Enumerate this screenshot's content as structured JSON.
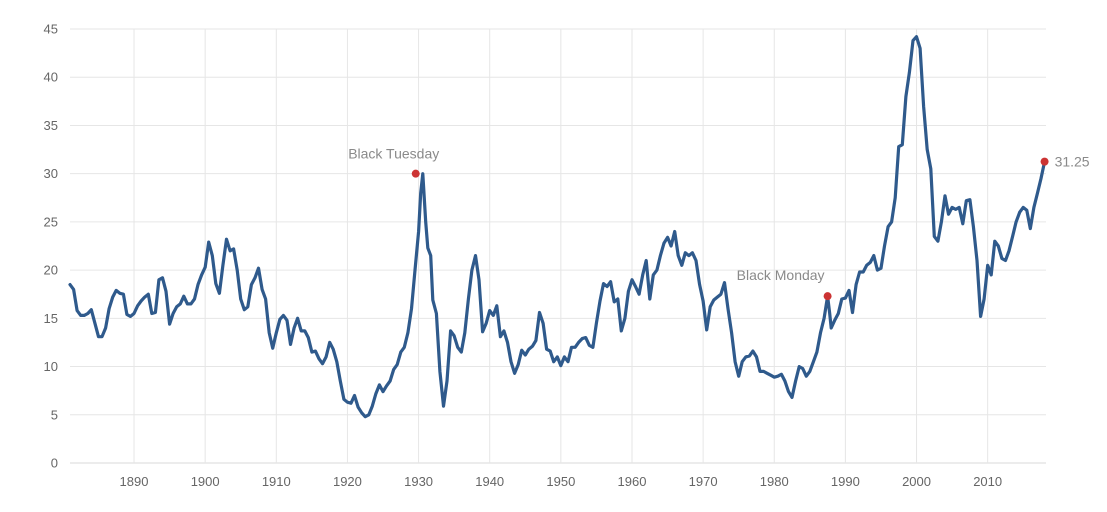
{
  "chart_data": {
    "type": "line",
    "title": "",
    "xlabel": "",
    "ylabel": "",
    "xlim": [
      1881,
      2018.2
    ],
    "ylim": [
      0,
      45
    ],
    "grid": true,
    "x_ticks": [
      1890,
      1900,
      1910,
      1920,
      1930,
      1940,
      1950,
      1960,
      1970,
      1980,
      1990,
      2000,
      2010
    ],
    "y_ticks": [
      0,
      5,
      10,
      15,
      20,
      25,
      30,
      35,
      40,
      45
    ],
    "colors": {
      "line": "#2f5a8c",
      "marker": "#cc3333",
      "grid": "#e6e6e6",
      "tick_text": "#666666",
      "annotation_text": "#8a8a8a"
    },
    "series": [
      {
        "points": [
          [
            1881.0,
            18.5
          ],
          [
            1881.5,
            18.0
          ],
          [
            1882.0,
            15.8
          ],
          [
            1882.5,
            15.3
          ],
          [
            1883.0,
            15.3
          ],
          [
            1883.5,
            15.5
          ],
          [
            1884.0,
            15.9
          ],
          [
            1884.5,
            14.5
          ],
          [
            1885.0,
            13.1
          ],
          [
            1885.5,
            13.1
          ],
          [
            1886.0,
            14.0
          ],
          [
            1886.5,
            16.0
          ],
          [
            1887.0,
            17.2
          ],
          [
            1887.5,
            17.9
          ],
          [
            1888.0,
            17.6
          ],
          [
            1888.5,
            17.5
          ],
          [
            1889.0,
            15.4
          ],
          [
            1889.5,
            15.2
          ],
          [
            1890.0,
            15.5
          ],
          [
            1890.5,
            16.3
          ],
          [
            1891.0,
            16.8
          ],
          [
            1891.5,
            17.2
          ],
          [
            1892.0,
            17.5
          ],
          [
            1892.5,
            15.5
          ],
          [
            1893.0,
            15.6
          ],
          [
            1893.5,
            19.0
          ],
          [
            1894.0,
            19.2
          ],
          [
            1894.5,
            17.8
          ],
          [
            1895.0,
            14.4
          ],
          [
            1895.5,
            15.5
          ],
          [
            1896.0,
            16.2
          ],
          [
            1896.5,
            16.5
          ],
          [
            1897.0,
            17.3
          ],
          [
            1897.5,
            16.5
          ],
          [
            1898.0,
            16.5
          ],
          [
            1898.5,
            17.0
          ],
          [
            1899.0,
            18.5
          ],
          [
            1899.5,
            19.5
          ],
          [
            1900.0,
            20.3
          ],
          [
            1900.5,
            22.9
          ],
          [
            1901.0,
            21.5
          ],
          [
            1901.5,
            18.6
          ],
          [
            1902.0,
            17.6
          ],
          [
            1902.5,
            20.5
          ],
          [
            1903.0,
            23.2
          ],
          [
            1903.5,
            22.0
          ],
          [
            1904.0,
            22.2
          ],
          [
            1904.5,
            20.0
          ],
          [
            1905.0,
            17.0
          ],
          [
            1905.5,
            15.9
          ],
          [
            1906.0,
            16.2
          ],
          [
            1906.5,
            18.5
          ],
          [
            1907.0,
            19.2
          ],
          [
            1907.5,
            20.2
          ],
          [
            1908.0,
            18.0
          ],
          [
            1908.5,
            17.0
          ],
          [
            1909.0,
            13.5
          ],
          [
            1909.5,
            11.9
          ],
          [
            1910.0,
            13.5
          ],
          [
            1910.5,
            14.9
          ],
          [
            1911.0,
            15.3
          ],
          [
            1911.5,
            14.8
          ],
          [
            1912.0,
            12.3
          ],
          [
            1912.5,
            14.0
          ],
          [
            1913.0,
            15.0
          ],
          [
            1913.5,
            13.7
          ],
          [
            1914.0,
            13.7
          ],
          [
            1914.5,
            13.0
          ],
          [
            1915.0,
            11.5
          ],
          [
            1915.5,
            11.6
          ],
          [
            1916.0,
            10.8
          ],
          [
            1916.5,
            10.3
          ],
          [
            1917.0,
            11.0
          ],
          [
            1917.5,
            12.5
          ],
          [
            1918.0,
            11.8
          ],
          [
            1918.5,
            10.5
          ],
          [
            1919.0,
            8.5
          ],
          [
            1919.5,
            6.6
          ],
          [
            1920.0,
            6.3
          ],
          [
            1920.5,
            6.2
          ],
          [
            1921.0,
            7.0
          ],
          [
            1921.5,
            5.8
          ],
          [
            1922.0,
            5.2
          ],
          [
            1922.5,
            4.8
          ],
          [
            1923.0,
            5.0
          ],
          [
            1923.5,
            5.9
          ],
          [
            1924.0,
            7.2
          ],
          [
            1924.5,
            8.1
          ],
          [
            1925.0,
            7.4
          ],
          [
            1925.5,
            8.0
          ],
          [
            1926.0,
            8.5
          ],
          [
            1926.5,
            9.7
          ],
          [
            1927.0,
            10.2
          ],
          [
            1927.5,
            11.5
          ],
          [
            1928.0,
            12.0
          ],
          [
            1928.5,
            13.5
          ],
          [
            1929.0,
            16.0
          ],
          [
            1929.5,
            20.0
          ],
          [
            1930.0,
            24.0
          ],
          [
            1930.3,
            28.0
          ],
          [
            1930.6,
            30.0
          ],
          [
            1931.0,
            25.0
          ],
          [
            1931.3,
            22.3
          ],
          [
            1931.7,
            21.5
          ],
          [
            1932.0,
            16.9
          ],
          [
            1932.5,
            15.5
          ],
          [
            1933.0,
            9.5
          ],
          [
            1933.5,
            5.9
          ],
          [
            1934.0,
            8.5
          ],
          [
            1934.5,
            13.7
          ],
          [
            1935.0,
            13.2
          ],
          [
            1935.5,
            12.0
          ],
          [
            1936.0,
            11.5
          ],
          [
            1936.5,
            13.5
          ],
          [
            1937.0,
            17.0
          ],
          [
            1937.5,
            20.0
          ],
          [
            1938.0,
            21.5
          ],
          [
            1938.5,
            19.0
          ],
          [
            1939.0,
            13.6
          ],
          [
            1939.5,
            14.5
          ],
          [
            1940.0,
            15.8
          ],
          [
            1940.5,
            15.3
          ],
          [
            1941.0,
            16.3
          ],
          [
            1941.5,
            13.1
          ],
          [
            1942.0,
            13.7
          ],
          [
            1942.5,
            12.5
          ],
          [
            1943.0,
            10.5
          ],
          [
            1943.5,
            9.3
          ],
          [
            1944.0,
            10.2
          ],
          [
            1944.5,
            11.7
          ],
          [
            1945.0,
            11.2
          ],
          [
            1945.5,
            11.8
          ],
          [
            1946.0,
            12.1
          ],
          [
            1946.5,
            12.7
          ],
          [
            1947.0,
            15.6
          ],
          [
            1947.5,
            14.5
          ],
          [
            1948.0,
            11.8
          ],
          [
            1948.5,
            11.6
          ],
          [
            1949.0,
            10.5
          ],
          [
            1949.5,
            11.0
          ],
          [
            1950.0,
            10.1
          ],
          [
            1950.5,
            11.0
          ],
          [
            1951.0,
            10.5
          ],
          [
            1951.5,
            12.0
          ],
          [
            1952.0,
            12.0
          ],
          [
            1952.5,
            12.5
          ],
          [
            1953.0,
            12.9
          ],
          [
            1953.5,
            13.0
          ],
          [
            1954.0,
            12.2
          ],
          [
            1954.5,
            12.0
          ],
          [
            1955.0,
            14.5
          ],
          [
            1955.5,
            16.8
          ],
          [
            1956.0,
            18.6
          ],
          [
            1956.5,
            18.3
          ],
          [
            1957.0,
            18.8
          ],
          [
            1957.5,
            16.7
          ],
          [
            1958.0,
            17.0
          ],
          [
            1958.5,
            13.7
          ],
          [
            1959.0,
            15.0
          ],
          [
            1959.5,
            17.8
          ],
          [
            1960.0,
            19.0
          ],
          [
            1960.5,
            18.3
          ],
          [
            1961.0,
            17.5
          ],
          [
            1961.5,
            19.5
          ],
          [
            1962.0,
            21.0
          ],
          [
            1962.5,
            17.0
          ],
          [
            1963.0,
            19.5
          ],
          [
            1963.5,
            20.0
          ],
          [
            1964.0,
            21.5
          ],
          [
            1964.5,
            22.8
          ],
          [
            1965.0,
            23.4
          ],
          [
            1965.5,
            22.5
          ],
          [
            1966.0,
            24.0
          ],
          [
            1966.5,
            21.5
          ],
          [
            1967.0,
            20.5
          ],
          [
            1967.5,
            21.8
          ],
          [
            1968.0,
            21.5
          ],
          [
            1968.5,
            21.8
          ],
          [
            1969.0,
            21.0
          ],
          [
            1969.5,
            18.5
          ],
          [
            1970.0,
            16.8
          ],
          [
            1970.5,
            13.8
          ],
          [
            1971.0,
            16.2
          ],
          [
            1971.5,
            16.9
          ],
          [
            1972.0,
            17.2
          ],
          [
            1972.5,
            17.5
          ],
          [
            1973.0,
            18.7
          ],
          [
            1973.5,
            16.0
          ],
          [
            1974.0,
            13.5
          ],
          [
            1974.5,
            10.5
          ],
          [
            1975.0,
            9.0
          ],
          [
            1975.5,
            10.5
          ],
          [
            1976.0,
            11.0
          ],
          [
            1976.5,
            11.1
          ],
          [
            1977.0,
            11.6
          ],
          [
            1977.5,
            11.0
          ],
          [
            1978.0,
            9.5
          ],
          [
            1978.5,
            9.5
          ],
          [
            1979.0,
            9.3
          ],
          [
            1979.5,
            9.1
          ],
          [
            1980.0,
            8.9
          ],
          [
            1980.5,
            9.0
          ],
          [
            1981.0,
            9.2
          ],
          [
            1981.5,
            8.5
          ],
          [
            1982.0,
            7.4
          ],
          [
            1982.5,
            6.8
          ],
          [
            1983.0,
            8.5
          ],
          [
            1983.5,
            10.0
          ],
          [
            1984.0,
            9.8
          ],
          [
            1984.5,
            9.0
          ],
          [
            1985.0,
            9.5
          ],
          [
            1985.5,
            10.5
          ],
          [
            1986.0,
            11.5
          ],
          [
            1986.5,
            13.5
          ],
          [
            1987.0,
            15.0
          ],
          [
            1987.5,
            17.3
          ],
          [
            1987.8,
            15.5
          ],
          [
            1988.0,
            14.0
          ],
          [
            1988.5,
            14.8
          ],
          [
            1989.0,
            15.5
          ],
          [
            1989.5,
            17.0
          ],
          [
            1990.0,
            17.1
          ],
          [
            1990.5,
            17.9
          ],
          [
            1991.0,
            15.6
          ],
          [
            1991.5,
            18.5
          ],
          [
            1992.0,
            19.8
          ],
          [
            1992.5,
            19.8
          ],
          [
            1993.0,
            20.5
          ],
          [
            1993.5,
            20.8
          ],
          [
            1994.0,
            21.5
          ],
          [
            1994.5,
            20.0
          ],
          [
            1995.0,
            20.2
          ],
          [
            1995.5,
            22.5
          ],
          [
            1996.0,
            24.5
          ],
          [
            1996.5,
            25.0
          ],
          [
            1997.0,
            27.5
          ],
          [
            1997.5,
            32.8
          ],
          [
            1998.0,
            33.0
          ],
          [
            1998.5,
            38.0
          ],
          [
            1999.0,
            40.5
          ],
          [
            1999.5,
            43.8
          ],
          [
            2000.0,
            44.2
          ],
          [
            2000.5,
            43.0
          ],
          [
            2001.0,
            37.0
          ],
          [
            2001.5,
            32.5
          ],
          [
            2002.0,
            30.5
          ],
          [
            2002.5,
            23.5
          ],
          [
            2003.0,
            23.0
          ],
          [
            2003.5,
            25.0
          ],
          [
            2004.0,
            27.7
          ],
          [
            2004.5,
            25.8
          ],
          [
            2005.0,
            26.5
          ],
          [
            2005.5,
            26.3
          ],
          [
            2006.0,
            26.5
          ],
          [
            2006.5,
            24.8
          ],
          [
            2007.0,
            27.2
          ],
          [
            2007.5,
            27.3
          ],
          [
            2008.0,
            24.5
          ],
          [
            2008.5,
            21.0
          ],
          [
            2009.0,
            15.2
          ],
          [
            2009.5,
            17.0
          ],
          [
            2010.0,
            20.5
          ],
          [
            2010.5,
            19.5
          ],
          [
            2011.0,
            23.0
          ],
          [
            2011.5,
            22.5
          ],
          [
            2012.0,
            21.2
          ],
          [
            2012.5,
            21.0
          ],
          [
            2013.0,
            22.0
          ],
          [
            2013.5,
            23.5
          ],
          [
            2014.0,
            25.0
          ],
          [
            2014.5,
            26.0
          ],
          [
            2015.0,
            26.5
          ],
          [
            2015.5,
            26.2
          ],
          [
            2016.0,
            24.3
          ],
          [
            2016.5,
            26.5
          ],
          [
            2017.0,
            28.0
          ],
          [
            2017.5,
            29.5
          ],
          [
            2018.0,
            31.25
          ]
        ]
      }
    ],
    "markers": [
      {
        "x": 1929.6,
        "y": 30.0,
        "label": "Black Tuesday",
        "label_anchor": "above"
      },
      {
        "x": 1987.5,
        "y": 17.3,
        "label": "Black Monday",
        "label_anchor": "above-left"
      },
      {
        "x": 2018.0,
        "y": 31.25,
        "label": "31.25",
        "label_anchor": "right"
      }
    ]
  }
}
